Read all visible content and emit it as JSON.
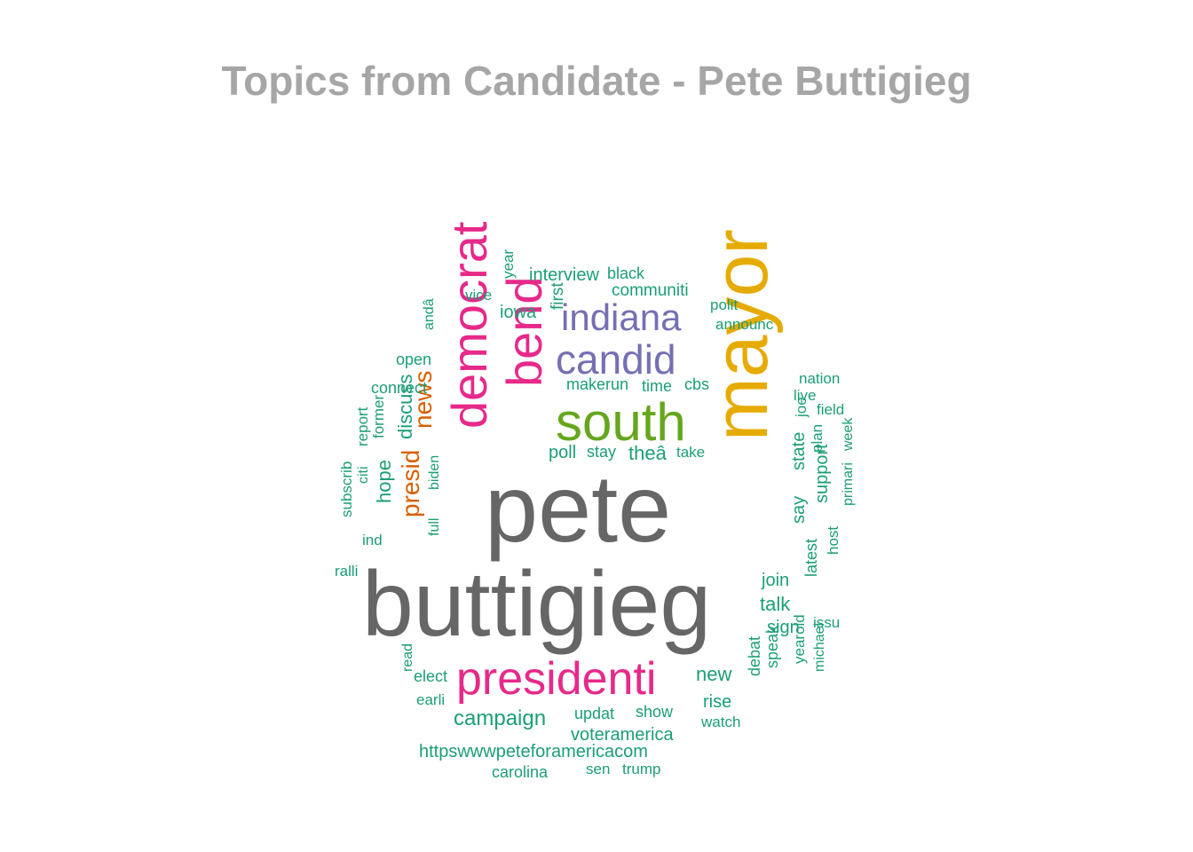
{
  "title": "Topics from Candidate - Pete Buttigieg",
  "palette": {
    "grey": "#666666",
    "gold": "#e6ab02",
    "magenta": "#e7298a",
    "green": "#66a61e",
    "purple": "#7570b3",
    "orange": "#d95f02",
    "teal": "#1b9e77"
  },
  "chart_data": {
    "type": "wordcloud",
    "words": [
      {
        "text": "pete",
        "color": "grey"
      },
      {
        "text": "buttigieg",
        "color": "grey"
      },
      {
        "text": "mayor",
        "color": "gold"
      },
      {
        "text": "democrat",
        "color": "magenta"
      },
      {
        "text": "bend",
        "color": "magenta"
      },
      {
        "text": "presidenti",
        "color": "magenta"
      },
      {
        "text": "south",
        "color": "green"
      },
      {
        "text": "indiana",
        "color": "purple"
      },
      {
        "text": "candid",
        "color": "purple"
      },
      {
        "text": "news",
        "color": "orange"
      },
      {
        "text": "presid",
        "color": "orange"
      },
      {
        "text": "campaign",
        "color": "teal"
      },
      {
        "text": "discuss",
        "color": "teal"
      },
      {
        "text": "hope",
        "color": "teal"
      },
      {
        "text": "theâ",
        "color": "teal"
      },
      {
        "text": "new",
        "color": "teal"
      },
      {
        "text": "talk",
        "color": "teal"
      },
      {
        "text": "join",
        "color": "teal"
      },
      {
        "text": "iowa",
        "color": "teal"
      },
      {
        "text": "interview",
        "color": "teal"
      },
      {
        "text": "communiti",
        "color": "teal"
      },
      {
        "text": "voteramerica",
        "color": "teal"
      },
      {
        "text": "httpswwwpeteforamericacom",
        "color": "teal"
      },
      {
        "text": "poll",
        "color": "teal"
      },
      {
        "text": "stay",
        "color": "teal"
      },
      {
        "text": "take",
        "color": "teal"
      },
      {
        "text": "makerun",
        "color": "teal"
      },
      {
        "text": "time",
        "color": "teal"
      },
      {
        "text": "cbs",
        "color": "teal"
      },
      {
        "text": "first",
        "color": "teal"
      },
      {
        "text": "black",
        "color": "teal"
      },
      {
        "text": "year",
        "color": "teal"
      },
      {
        "text": "vice",
        "color": "teal"
      },
      {
        "text": "polit",
        "color": "teal"
      },
      {
        "text": "announc",
        "color": "teal"
      },
      {
        "text": "andâ",
        "color": "teal"
      },
      {
        "text": "open",
        "color": "teal"
      },
      {
        "text": "connect",
        "color": "teal"
      },
      {
        "text": "former",
        "color": "teal"
      },
      {
        "text": "report",
        "color": "teal"
      },
      {
        "text": "citi",
        "color": "teal"
      },
      {
        "text": "subscrib",
        "color": "teal"
      },
      {
        "text": "biden",
        "color": "teal"
      },
      {
        "text": "full",
        "color": "teal"
      },
      {
        "text": "ind",
        "color": "teal"
      },
      {
        "text": "ralli",
        "color": "teal"
      },
      {
        "text": "nation",
        "color": "teal"
      },
      {
        "text": "live",
        "color": "teal"
      },
      {
        "text": "field",
        "color": "teal"
      },
      {
        "text": "joe",
        "color": "teal"
      },
      {
        "text": "state",
        "color": "teal"
      },
      {
        "text": "plan",
        "color": "teal"
      },
      {
        "text": "week",
        "color": "teal"
      },
      {
        "text": "primari",
        "color": "teal"
      },
      {
        "text": "support",
        "color": "teal"
      },
      {
        "text": "say",
        "color": "teal"
      },
      {
        "text": "host",
        "color": "teal"
      },
      {
        "text": "latest",
        "color": "teal"
      },
      {
        "text": "sign",
        "color": "teal"
      },
      {
        "text": "issu",
        "color": "teal"
      },
      {
        "text": "speak",
        "color": "teal"
      },
      {
        "text": "debat",
        "color": "teal"
      },
      {
        "text": "yearold",
        "color": "teal"
      },
      {
        "text": "michael",
        "color": "teal"
      },
      {
        "text": "rise",
        "color": "teal"
      },
      {
        "text": "watch",
        "color": "teal"
      },
      {
        "text": "updat",
        "color": "teal"
      },
      {
        "text": "show",
        "color": "teal"
      },
      {
        "text": "read",
        "color": "teal"
      },
      {
        "text": "elect",
        "color": "teal"
      },
      {
        "text": "earli",
        "color": "teal"
      },
      {
        "text": "carolina",
        "color": "teal"
      },
      {
        "text": "sen",
        "color": "teal"
      },
      {
        "text": "trump",
        "color": "teal"
      }
    ]
  }
}
